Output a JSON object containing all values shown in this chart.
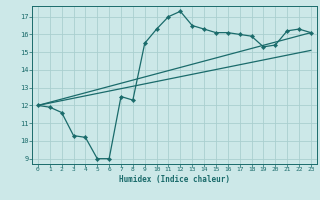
{
  "title": "",
  "xlabel": "Humidex (Indice chaleur)",
  "ylabel": "",
  "bg_color": "#cce8e8",
  "grid_color": "#aacfcf",
  "line_color": "#1a6b6b",
  "xlim": [
    -0.5,
    23.5
  ],
  "ylim": [
    8.7,
    17.6
  ],
  "yticks": [
    9,
    10,
    11,
    12,
    13,
    14,
    15,
    16,
    17
  ],
  "xticks": [
    0,
    1,
    2,
    3,
    4,
    5,
    6,
    7,
    8,
    9,
    10,
    11,
    12,
    13,
    14,
    15,
    16,
    17,
    18,
    19,
    20,
    21,
    22,
    23
  ],
  "line1_x": [
    0,
    1,
    2,
    3,
    4,
    5,
    6,
    7,
    8,
    9,
    10,
    11,
    12,
    13,
    14,
    15,
    16,
    17,
    18,
    19,
    20,
    21,
    22,
    23
  ],
  "line1_y": [
    12.0,
    11.9,
    11.6,
    10.3,
    10.2,
    9.0,
    9.0,
    12.5,
    12.3,
    15.5,
    16.3,
    17.0,
    17.3,
    16.5,
    16.3,
    16.1,
    16.1,
    16.0,
    15.9,
    15.3,
    15.4,
    16.2,
    16.3,
    16.1
  ],
  "line2_x": [
    0,
    23
  ],
  "line2_y": [
    12.0,
    16.1
  ],
  "line3_x": [
    0,
    23
  ],
  "line3_y": [
    12.0,
    15.1
  ]
}
